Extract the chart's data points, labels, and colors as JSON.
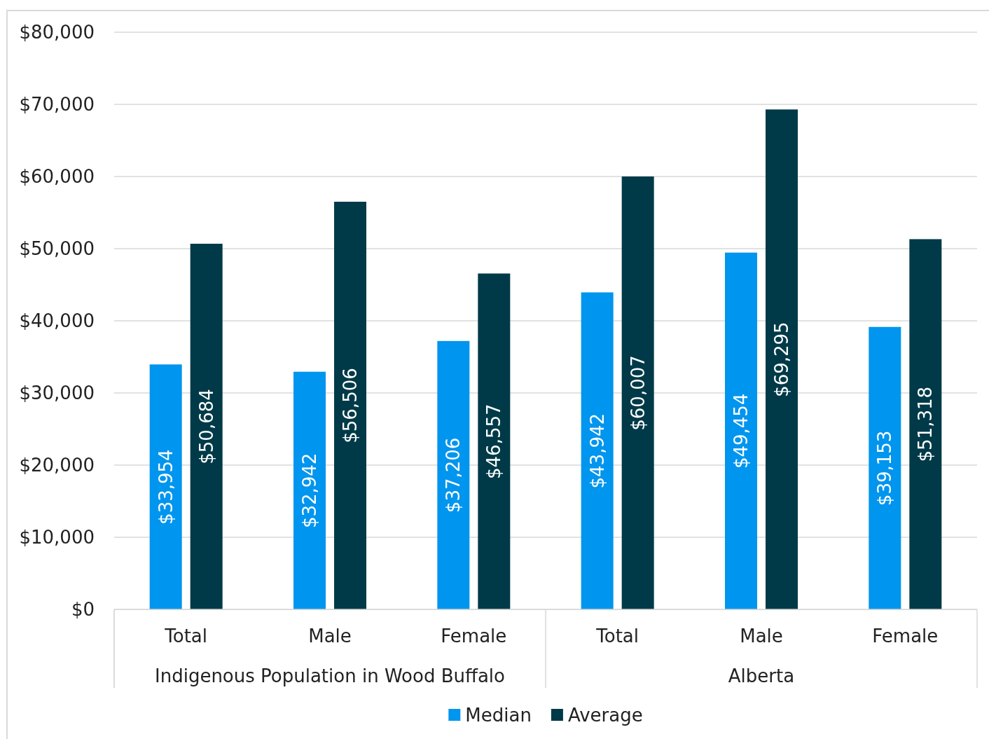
{
  "chart_data": {
    "type": "bar",
    "categories": [
      "Total",
      "Male",
      "Female",
      "Total",
      "Male",
      "Female"
    ],
    "series": [
      {
        "name": "Median",
        "color": "#0095ee",
        "values": [
          33954,
          32942,
          37206,
          43942,
          49454,
          39153
        ],
        "value_labels": [
          "$33,954",
          "$32,942",
          "$37,206",
          "$43,942",
          "$49,454",
          "$39,153"
        ]
      },
      {
        "name": "Average",
        "color": "#003a48",
        "values": [
          50684,
          56506,
          46557,
          60007,
          69295,
          51318
        ],
        "value_labels": [
          "$50,684",
          "$56,506",
          "$46,557",
          "$60,007",
          "$69,295",
          "$51,318"
        ]
      }
    ],
    "annotations": [
      "Indigenous Population in Wood Buffalo",
      "Alberta"
    ],
    "ylim": [
      0,
      80000
    ],
    "yticks": [
      {
        "value": 0,
        "label": "$0"
      },
      {
        "value": 10000,
        "label": "$10,000"
      },
      {
        "value": 20000,
        "label": "$20,000"
      },
      {
        "value": 30000,
        "label": "$30,000"
      },
      {
        "value": 40000,
        "label": "$40,000"
      },
      {
        "value": 50000,
        "label": "$50,000"
      },
      {
        "value": 60000,
        "label": "$60,000"
      },
      {
        "value": 70000,
        "label": "$70,000"
      },
      {
        "value": 80000,
        "label": "$80,000"
      }
    ],
    "grid": "y",
    "legend": "bottom"
  }
}
